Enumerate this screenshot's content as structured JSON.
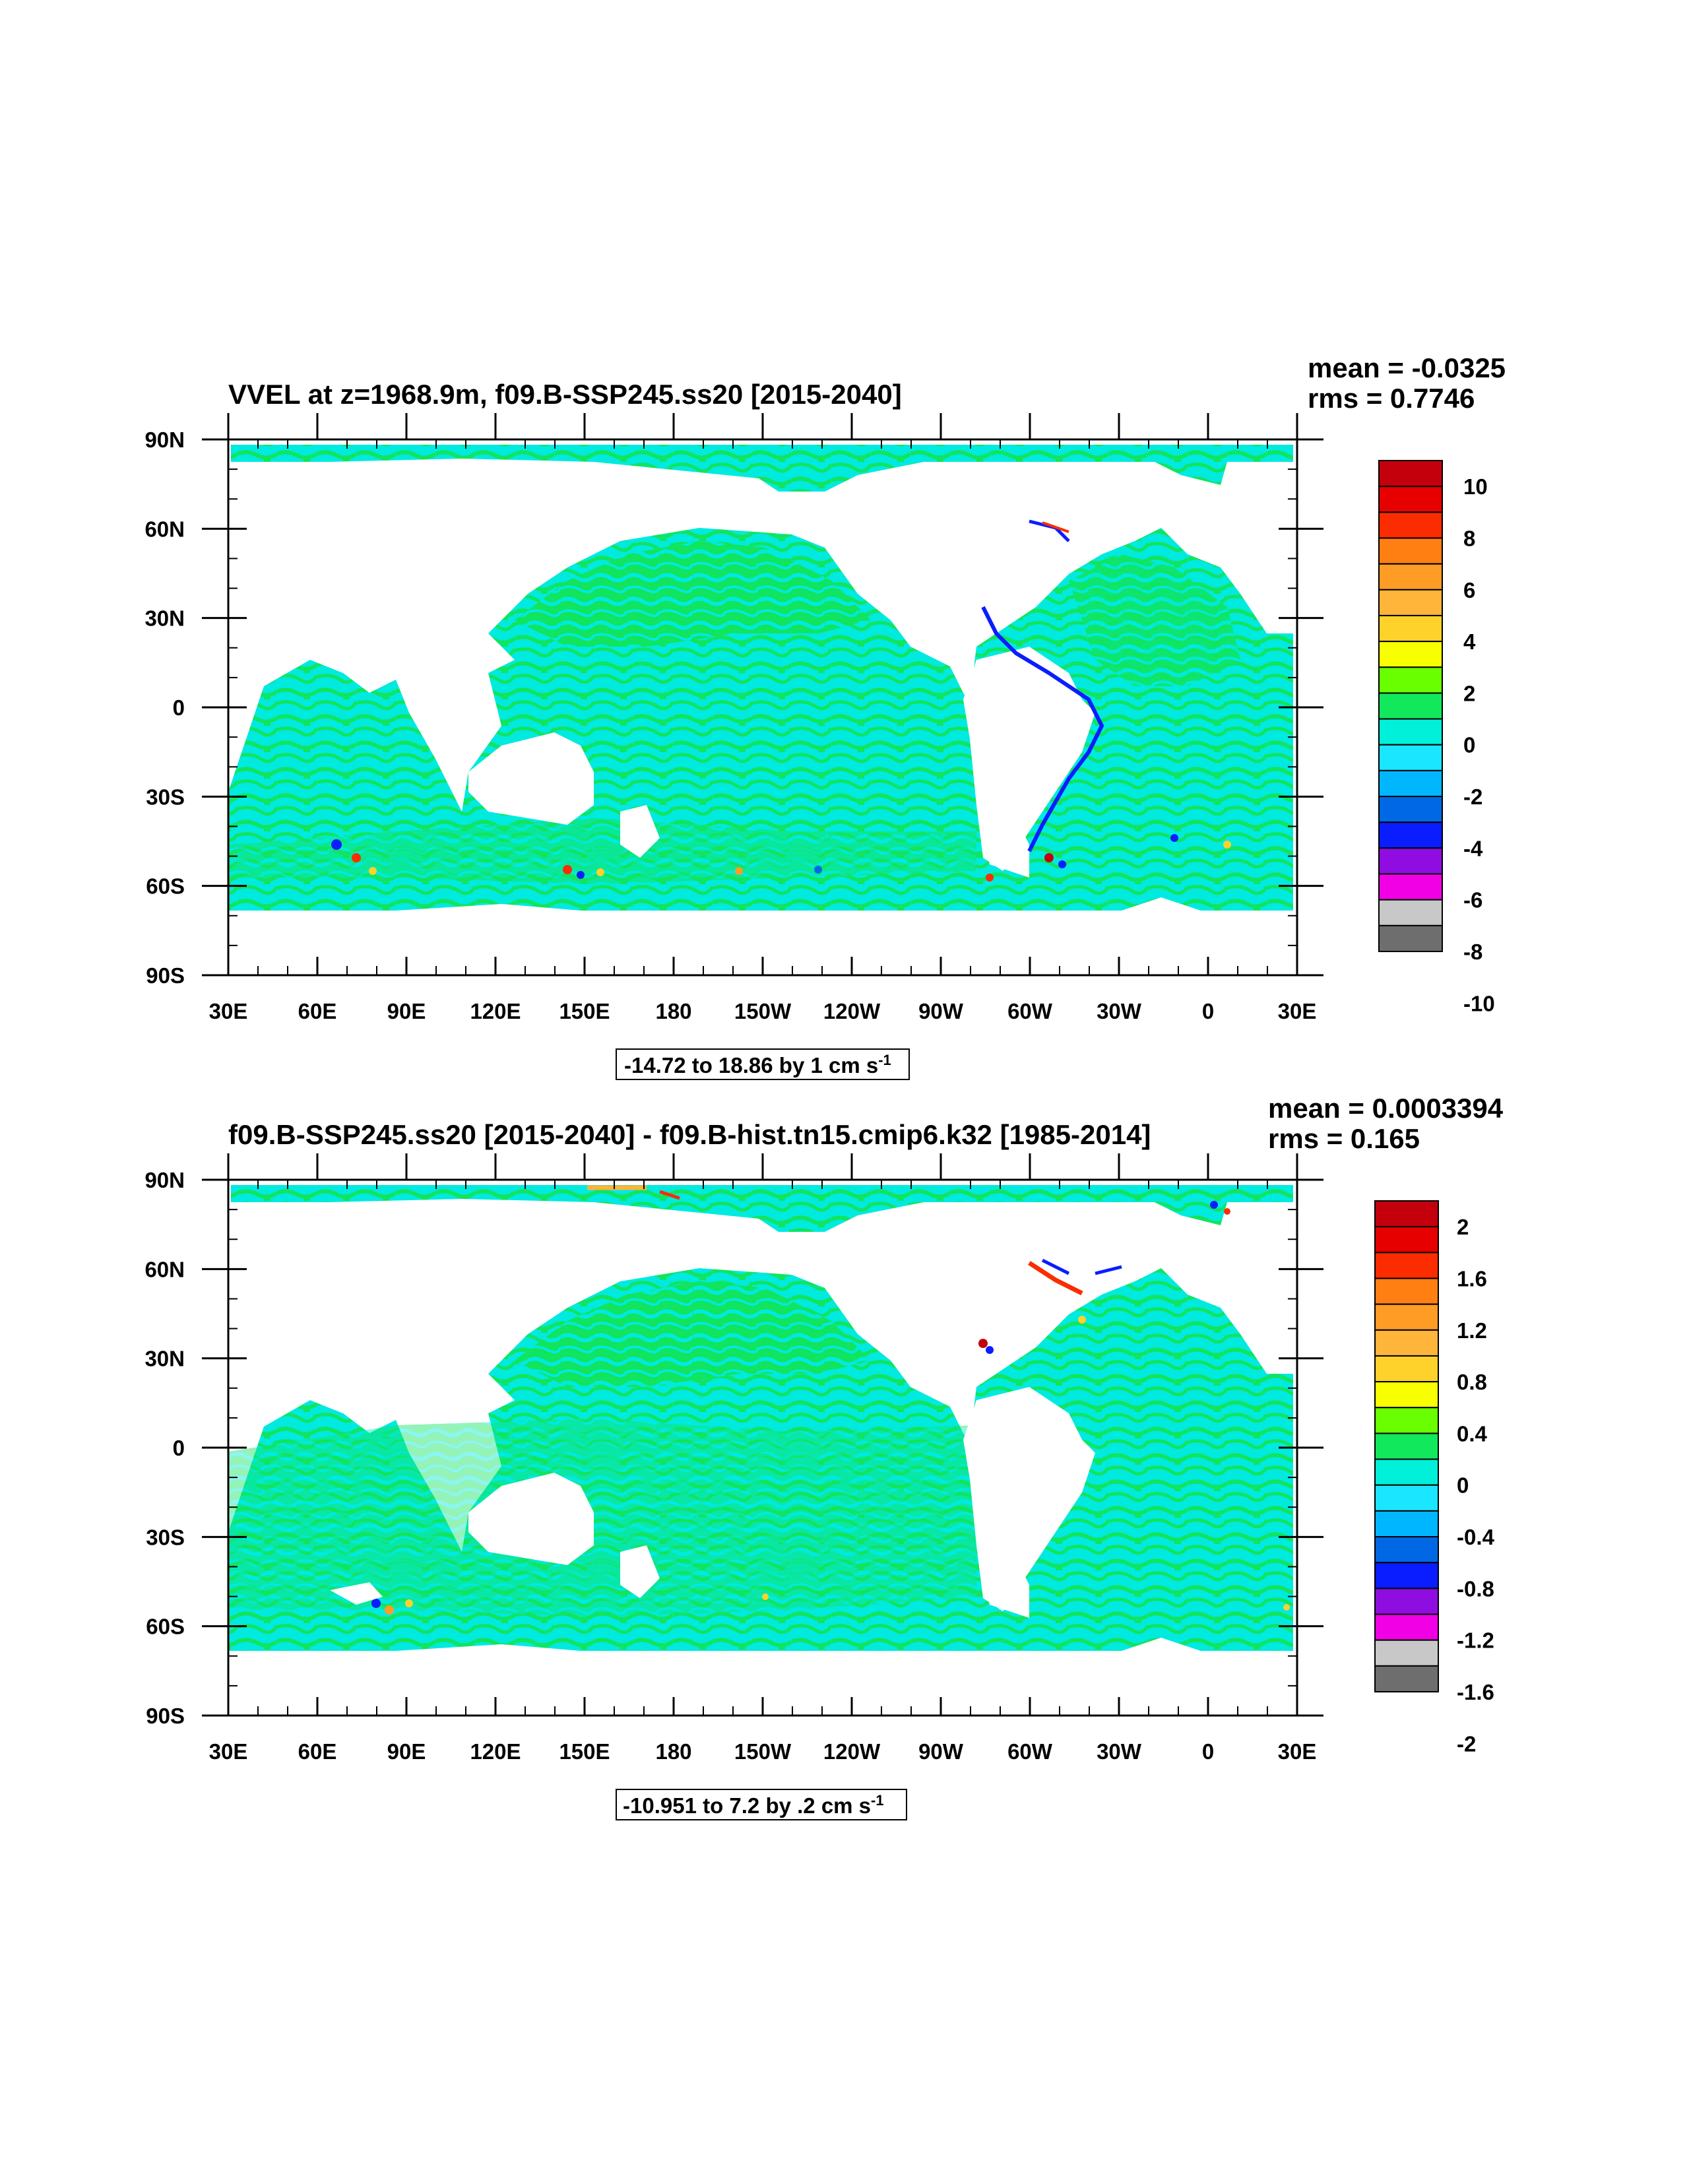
{
  "chart_data": [
    {
      "type": "heatmap",
      "title": "VVEL at z=1968.9m, f09.B-SSP245.ss20 [2015-2040]",
      "mean_text": "mean = -0.0325",
      "rms_text": "rms = 0.7746",
      "x_tick_labels": [
        "30E",
        "60E",
        "90E",
        "120E",
        "150E",
        "180",
        "150W",
        "120W",
        "90W",
        "60W",
        "30W",
        "0",
        "30E"
      ],
      "y_tick_labels": [
        "90N",
        "60N",
        "30N",
        "0",
        "30S",
        "60S",
        "90S"
      ],
      "xlim": [
        30,
        390
      ],
      "ylim": [
        -90,
        90
      ],
      "colorbar_levels": [
        -10,
        -8,
        -6,
        -4,
        -2,
        0,
        2,
        4,
        6,
        8,
        10
      ],
      "colorbar_labels": [
        "10",
        "8",
        "6",
        "4",
        "2",
        "0",
        "-2",
        "-4",
        "-6",
        "-8",
        "-10"
      ],
      "caption": "-14.72 to 18.86 by 1 cm s",
      "caption_sup": "-1",
      "grid": false
    },
    {
      "type": "heatmap",
      "title": "f09.B-SSP245.ss20 [2015-2040] - f09.B-hist.tn15.cmip6.k32 [1985-2014]",
      "mean_text": "mean = 0.0003394",
      "rms_text": "rms = 0.165",
      "x_tick_labels": [
        "30E",
        "60E",
        "90E",
        "120E",
        "150E",
        "180",
        "150W",
        "120W",
        "90W",
        "60W",
        "30W",
        "0",
        "30E"
      ],
      "y_tick_labels": [
        "90N",
        "60N",
        "30N",
        "0",
        "30S",
        "60S",
        "90S"
      ],
      "xlim": [
        30,
        390
      ],
      "ylim": [
        -90,
        90
      ],
      "colorbar_levels": [
        -2,
        -1.6,
        -1.2,
        -0.8,
        -0.4,
        0,
        0.4,
        0.8,
        1.2,
        1.6,
        2
      ],
      "colorbar_labels": [
        "2",
        "1.6",
        "1.2",
        "0.8",
        "0.4",
        "0",
        "-0.4",
        "-0.8",
        "-1.2",
        "-1.6",
        "-2"
      ],
      "caption": "-10.951 to 7.2 by .2 cm s",
      "caption_sup": "-1",
      "grid": false
    }
  ],
  "colors": {
    "ocean_base": "#00eadf",
    "ocean_green": "#11e45e",
    "land": "#ffffff",
    "colorbar_fill": [
      "#c4000c",
      "#e70000",
      "#fb2d00",
      "#ff7f13",
      "#ff9c26",
      "#ffb43a",
      "#ffd12b",
      "#f7ff00",
      "#69ff00",
      "#12e85c",
      "#00f0d9",
      "#1ae6ff",
      "#00b7ff",
      "#0068e5",
      "#0a1dff",
      "#8f0de1",
      "#f200e5",
      "#c8c8c8",
      "#6e6e6e"
    ]
  }
}
